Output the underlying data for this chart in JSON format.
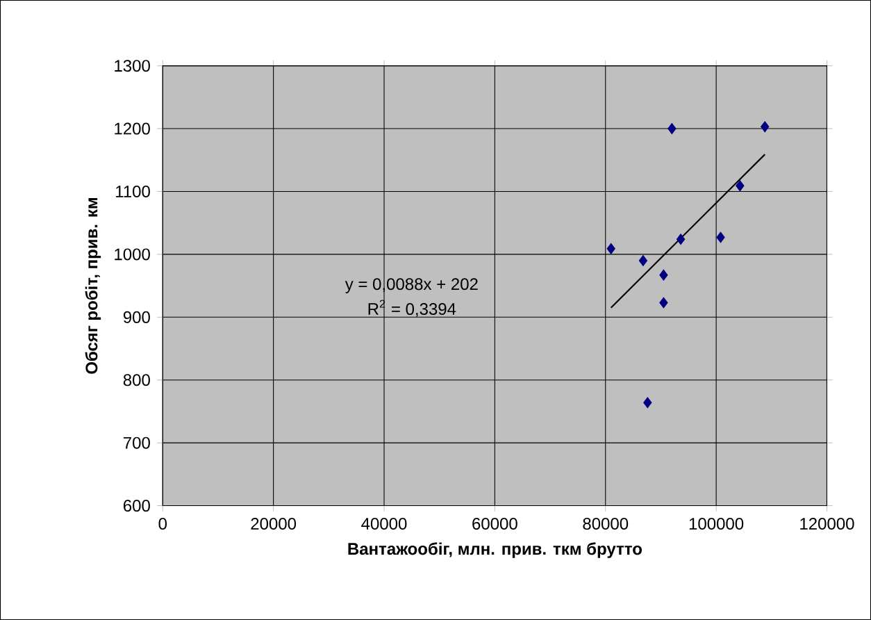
{
  "chart_data": {
    "type": "scatter",
    "xlabel": "Вантажообіг, млн. прив. ткм брутто",
    "ylabel": "Обсяг робіт, прив. км",
    "xlim": [
      0,
      120000
    ],
    "ylim": [
      600,
      1300
    ],
    "xticks": [
      0,
      20000,
      40000,
      60000,
      80000,
      100000,
      120000
    ],
    "yticks": [
      600,
      700,
      800,
      900,
      1000,
      1100,
      1200,
      1300
    ],
    "grid": true,
    "marker": "diamond",
    "series": [
      {
        "color": "#000080",
        "x": [
          81000,
          86800,
          90500,
          90500,
          87600,
          93600,
          100800,
          104300,
          108800,
          92000
        ],
        "values": [
          1009,
          990,
          967,
          923,
          764,
          1024,
          1027,
          1109,
          1203,
          1200
        ]
      },
      {
        "type": "line",
        "marker": "none",
        "color": "#000000",
        "x": [
          81000,
          108800
        ],
        "values": [
          915,
          1159
        ]
      }
    ],
    "annotations": [
      {
        "text": "y = 0,0088x + 202"
      },
      {
        "text": "R$^{2}$ = 0,3394"
      }
    ]
  }
}
